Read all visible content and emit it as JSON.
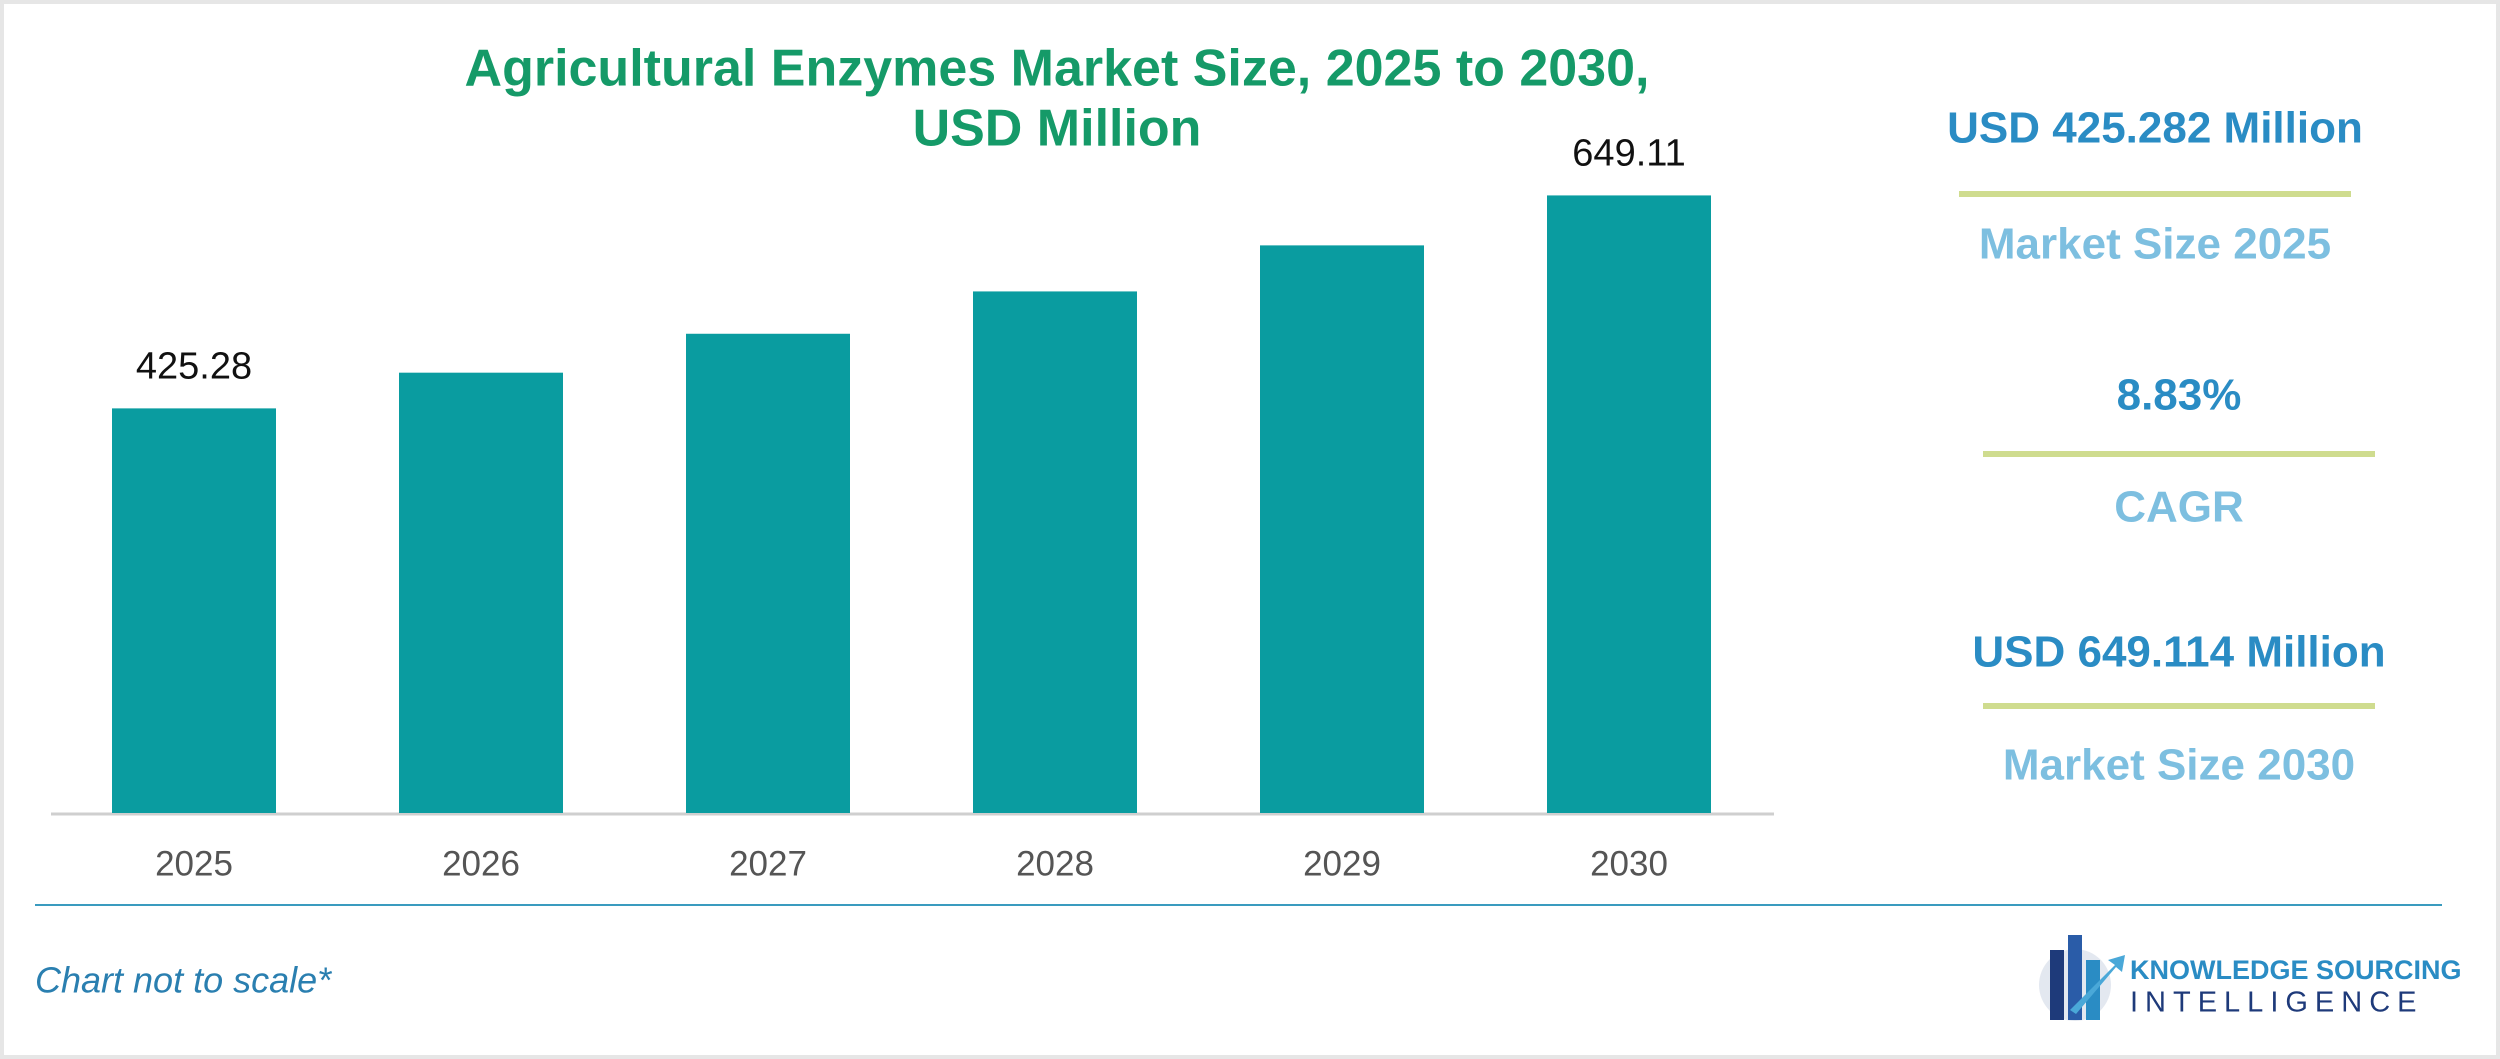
{
  "chart_data": {
    "type": "bar",
    "title": "Agricultural Enzymes Market Size, 2025 to 2030,",
    "subtitle": "USD Million",
    "categories": [
      "2025",
      "2026",
      "2027",
      "2028",
      "2029",
      "2030"
    ],
    "values": [
      425.28,
      462.8,
      503.7,
      548.2,
      596.6,
      649.11
    ],
    "value_labels": [
      "425.28",
      null,
      null,
      null,
      null,
      "649.11"
    ],
    "color": "#0a9ca0",
    "ylim": [
      0,
      700
    ]
  },
  "stats": [
    {
      "value": "USD 425.282 Million",
      "label": "Market Size 2025"
    },
    {
      "value": "8.83%",
      "label": "CAGR"
    },
    {
      "value": "USD 649.114 Million",
      "label": "Market Size 2030"
    }
  ],
  "footnote": "Chart not to scale*",
  "logo": {
    "line1": "KNOWLEDGE SOURCING",
    "line2": "INTELLIGENCE"
  }
}
